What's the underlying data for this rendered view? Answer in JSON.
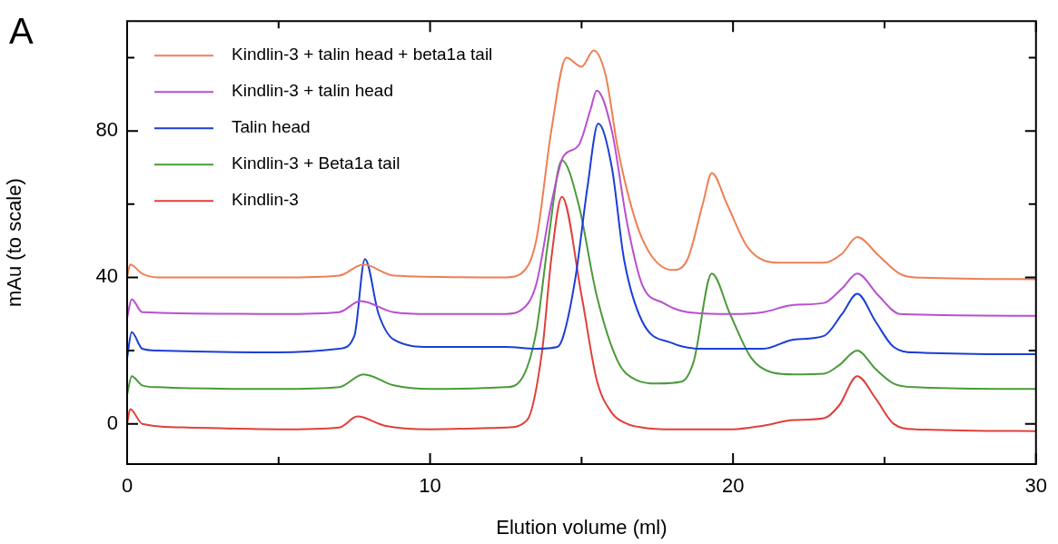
{
  "chart_data": {
    "type": "line",
    "xlabel": "Elution volume (ml)",
    "ylabel": "mAu (to scale)",
    "annotations": [
      "A"
    ],
    "xlim": [
      0,
      30
    ],
    "xticks": [
      0,
      {
        "value": 5,
        "label": null
      },
      10,
      {
        "value": 15,
        "label": null
      },
      20,
      {
        "value": 25,
        "label": null
      },
      30
    ],
    "ylim": [
      -11,
      110
    ],
    "yticks": [
      0,
      {
        "value": 20,
        "label": null
      },
      40,
      {
        "value": 60,
        "label": null
      },
      80,
      {
        "value": 100,
        "label": null
      }
    ],
    "grid": false,
    "legend": "top left",
    "marker": "none",
    "line_style": "solid",
    "series": [
      {
        "name": "Kindlin-3 + talin head + beta1a tail",
        "color": "#ef7f55",
        "x": [
          0,
          0.1,
          0.5,
          1,
          5,
          7,
          7.8,
          8.8,
          12.5,
          13,
          13.5,
          14,
          14.5,
          15,
          15.4,
          15.8,
          16.2,
          16.8,
          17.3,
          18,
          18.5,
          19,
          19.3,
          19.8,
          20.5,
          21.5,
          23,
          23.6,
          24.1,
          24.8,
          25.5,
          26,
          30
        ],
        "values": [
          40,
          43.5,
          41,
          40,
          40,
          40.5,
          43.5,
          40.5,
          40,
          41,
          50,
          80,
          100,
          97.5,
          102,
          95,
          75,
          55,
          46,
          42,
          45,
          60,
          68.5,
          60,
          48,
          44,
          44,
          46.5,
          51,
          46,
          41,
          40,
          39.5
        ]
      },
      {
        "name": "Kindlin-3 + talin head",
        "color": "#b84fd0",
        "x": [
          0,
          0.15,
          0.5,
          5,
          7,
          7.7,
          8.8,
          10,
          12.5,
          13,
          13.5,
          14,
          14.4,
          14.9,
          15.3,
          15.5,
          16,
          16.5,
          17,
          17.7,
          18.5,
          20,
          21,
          22,
          23,
          23.6,
          24.1,
          24.8,
          25.5,
          30
        ],
        "values": [
          29,
          34,
          30.5,
          30,
          30.5,
          33.5,
          30.5,
          30,
          30,
          31,
          38,
          60,
          73,
          76,
          86,
          91,
          80,
          55,
          38,
          33,
          30.5,
          30,
          30.5,
          32.5,
          33,
          37,
          41,
          35,
          30,
          29.5
        ]
      },
      {
        "name": "Talin head",
        "color": "#1b3fd6",
        "x": [
          0,
          0.15,
          0.5,
          1,
          5,
          7,
          7.5,
          7.85,
          8.3,
          8.8,
          10,
          12.5,
          13.5,
          14.2,
          14.4,
          14.8,
          15.2,
          15.55,
          16,
          16.4,
          17,
          18,
          19,
          21,
          22,
          23,
          23.6,
          24.1,
          24.7,
          25.3,
          26,
          30
        ],
        "values": [
          18,
          25,
          20.5,
          20,
          19.5,
          20.5,
          24,
          45,
          30,
          23,
          21,
          21,
          20.5,
          21,
          24,
          40,
          65,
          82,
          70,
          45,
          28,
          22,
          20.5,
          20.5,
          23,
          24,
          30,
          35.5,
          28,
          21,
          19.5,
          19
        ]
      },
      {
        "name": "Kindlin-3 + Beta1a tail",
        "color": "#4a9a3a",
        "x": [
          0,
          0.15,
          0.5,
          1,
          5,
          7,
          7.8,
          8.8,
          10,
          12.5,
          13,
          13.5,
          13.9,
          14.35,
          14.9,
          15.5,
          16.2,
          16.8,
          17.5,
          18.3,
          18.7,
          19.3,
          19.9,
          20.6,
          21.3,
          22,
          23,
          23.5,
          24.1,
          24.7,
          25.3,
          26,
          30
        ],
        "values": [
          8,
          13,
          10.5,
          10,
          9.5,
          10,
          13.5,
          10.5,
          9.5,
          10,
          12,
          25,
          50,
          72,
          60,
          35,
          17,
          12,
          11,
          11.5,
          17,
          41,
          30,
          18,
          14,
          13.5,
          13.7,
          16,
          20,
          15,
          11,
          10,
          9.5
        ]
      },
      {
        "name": "Kindlin-3",
        "color": "#e0403a",
        "x": [
          0,
          0.1,
          0.5,
          2,
          5,
          7,
          7.6,
          8.5,
          10,
          12.5,
          13.2,
          13.7,
          14,
          14.35,
          15,
          15.5,
          16,
          16.5,
          17,
          18,
          20,
          21,
          22,
          23,
          23.5,
          24.1,
          24.7,
          25.3,
          26,
          30
        ],
        "values": [
          0,
          4,
          0,
          -1,
          -1.5,
          -1,
          2,
          -0.5,
          -1.5,
          -1,
          1,
          20,
          45,
          62,
          35,
          12,
          3,
          0,
          -1,
          -1.5,
          -1.5,
          -0.5,
          1,
          1.5,
          5,
          13,
          7,
          0,
          -1.5,
          -2
        ]
      }
    ]
  }
}
